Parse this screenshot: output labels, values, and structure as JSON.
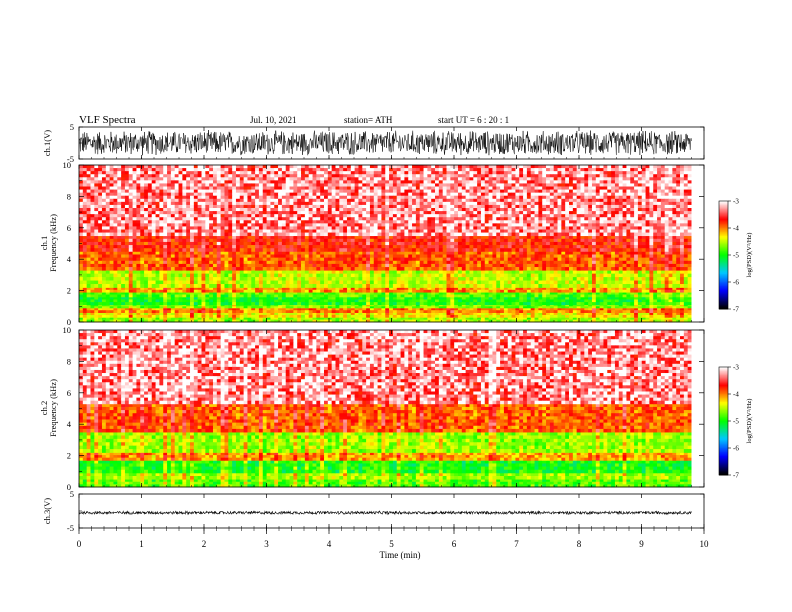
{
  "header": {
    "title": "VLF  Spectra",
    "date": "Jul.  10, 2021",
    "station": "station= ATH",
    "start": "start  UT  =    6  : 20 : 1"
  },
  "chart_data": [
    {
      "type": "line",
      "name": "ch1-waveform",
      "ylabel": "ch.1(V)",
      "ylim": [
        -5,
        5
      ],
      "yticks": [
        "5",
        "-5"
      ],
      "xlim": [
        0,
        10
      ],
      "data_span_min": [
        0,
        9.8
      ],
      "amplitude_v": 4.2,
      "line_color": "#000000"
    },
    {
      "type": "heatmap",
      "name": "ch1-spectrogram",
      "ylabel": "ch.1\nFrequency  (kHz)",
      "ylim": [
        0,
        10
      ],
      "yticks": [
        "0",
        "2",
        "4",
        "6",
        "8",
        "10"
      ],
      "xlim": [
        0,
        10
      ],
      "data_span_min": [
        0,
        9.8
      ],
      "bands_khz_level": [
        [
          0,
          0.3,
          -4.6
        ],
        [
          0.3,
          0.6,
          -4.3
        ],
        [
          0.6,
          0.9,
          -4.0
        ],
        [
          0.9,
          1.1,
          -4.7
        ],
        [
          1.1,
          1.6,
          -5.0
        ],
        [
          1.6,
          1.9,
          -4.8
        ],
        [
          1.9,
          2.2,
          -4.1
        ],
        [
          2.2,
          3.3,
          -4.5
        ],
        [
          3.3,
          4.5,
          -3.9
        ],
        [
          4.5,
          5.5,
          -3.7
        ],
        [
          5.5,
          10,
          -3.3
        ]
      ],
      "colorbar": {
        "label": "log(PSD)(V²/Hz)",
        "min": -7,
        "max": -3,
        "ticks": [
          "-3",
          "-4",
          "-5",
          "-6",
          "-7"
        ]
      }
    },
    {
      "type": "heatmap",
      "name": "ch2-spectrogram",
      "ylabel": "ch.2\nFrequency  (kHz)",
      "ylim": [
        0,
        10
      ],
      "yticks": [
        "0",
        "2",
        "4",
        "6",
        "8",
        "10"
      ],
      "xlim": [
        0,
        10
      ],
      "data_span_min": [
        0,
        9.8
      ],
      "bands_khz_level": [
        [
          0,
          0.5,
          -4.8
        ],
        [
          0.5,
          0.9,
          -4.6
        ],
        [
          0.9,
          1.7,
          -5.0
        ],
        [
          1.7,
          2.2,
          -4.1
        ],
        [
          2.2,
          3.5,
          -4.6
        ],
        [
          3.5,
          5.3,
          -3.9
        ],
        [
          5.3,
          10,
          -3.3
        ]
      ],
      "colorbar": {
        "label": "log(PSD)(V²/Hz)",
        "min": -7,
        "max": -3,
        "ticks": [
          "-3",
          "-4",
          "-5",
          "-6",
          "-7"
        ]
      }
    },
    {
      "type": "line",
      "name": "ch3-waveform",
      "ylabel": "ch.3(V)",
      "ylim": [
        -5,
        5
      ],
      "yticks": [
        "5",
        "-5"
      ],
      "xlim": [
        0,
        10
      ],
      "data_span_min": [
        0,
        9.8
      ],
      "offset_v": -0.5,
      "amplitude_v": 0.5,
      "line_color": "#000000"
    }
  ],
  "xaxis": {
    "xlabel": "Time  (min)",
    "ticks": [
      "0",
      "1",
      "2",
      "3",
      "4",
      "5",
      "6",
      "7",
      "8",
      "9",
      "10"
    ]
  },
  "colors": {
    "scale": [
      "#000000",
      "#0000ff",
      "#00c8ff",
      "#00ff00",
      "#ffff00",
      "#ff0000",
      "#ffffff"
    ]
  }
}
